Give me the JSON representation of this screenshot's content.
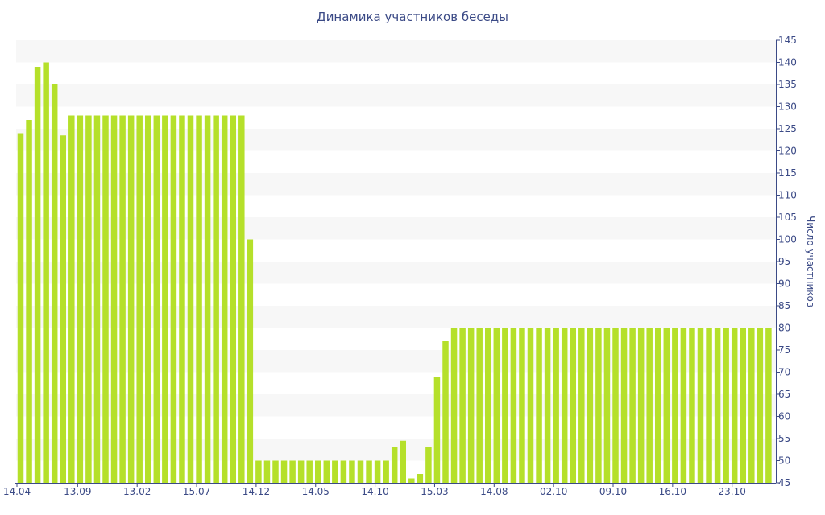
{
  "chart_data": {
    "type": "bar",
    "title": "Динамика участников беседы",
    "ylabel": "Число участников",
    "xlabel": "",
    "ylim": [
      45,
      145
    ],
    "y_tick_step": 5,
    "y_axis_side": "right",
    "grid": "alternating horizontal bands",
    "bar_color": "#b5e02a",
    "band_color": "#f7f7f7",
    "axis_color": "#3b4a86",
    "x_tick_labels": [
      "14.04",
      "13.09",
      "13.02",
      "15.07",
      "14.12",
      "14.05",
      "14.10",
      "15.03",
      "14.08",
      "02.10",
      "09.10",
      "16.10",
      "23.10"
    ],
    "x_tick_bar_index": [
      0,
      7,
      14,
      21,
      28,
      35,
      42,
      49,
      56,
      63,
      70,
      77,
      84
    ],
    "values": [
      124,
      127,
      139,
      140,
      135,
      123.5,
      128,
      128,
      128,
      128,
      128,
      128,
      128,
      128,
      128,
      128,
      128,
      128,
      128,
      128,
      128,
      128,
      128,
      128,
      128,
      128,
      128,
      100,
      50,
      50,
      50,
      50,
      50,
      50,
      50,
      50,
      50,
      50,
      50,
      50,
      50,
      50,
      50,
      50,
      53,
      54.5,
      46,
      47,
      53,
      69,
      77,
      80,
      80,
      80,
      80,
      80,
      80,
      80,
      80,
      80,
      80,
      80,
      80,
      80,
      80,
      80,
      80,
      80,
      80,
      80,
      80,
      80,
      80,
      80,
      80,
      80,
      80,
      80,
      80,
      80,
      80,
      80,
      80,
      80,
      80,
      80,
      80,
      80,
      80
    ]
  }
}
